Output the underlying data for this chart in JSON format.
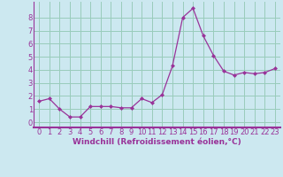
{
  "x": [
    0,
    1,
    2,
    3,
    4,
    5,
    6,
    7,
    8,
    9,
    10,
    11,
    12,
    13,
    14,
    15,
    16,
    17,
    18,
    19,
    20,
    21,
    22,
    23
  ],
  "y": [
    1.6,
    1.8,
    1.0,
    0.4,
    0.4,
    1.2,
    1.2,
    1.2,
    1.1,
    1.1,
    1.8,
    1.5,
    2.1,
    4.3,
    8.0,
    8.7,
    6.6,
    5.1,
    3.9,
    3.6,
    3.8,
    3.7,
    3.8,
    4.1
  ],
  "line_color": "#993399",
  "marker": "D",
  "markersize": 2.0,
  "linewidth": 0.9,
  "xlabel": "Windchill (Refroidissement éolien,°C)",
  "xlabel_fontsize": 6.5,
  "ylabel_ticks": [
    0,
    1,
    2,
    3,
    4,
    5,
    6,
    7,
    8
  ],
  "xtick_labels": [
    "0",
    "1",
    "2",
    "3",
    "4",
    "5",
    "6",
    "7",
    "8",
    "9",
    "10",
    "11",
    "12",
    "13",
    "14",
    "15",
    "16",
    "17",
    "18",
    "19",
    "20",
    "21",
    "22",
    "23"
  ],
  "xlim": [
    -0.5,
    23.5
  ],
  "ylim": [
    -0.4,
    9.2
  ],
  "bg_color": "#cce8f0",
  "grid_color": "#99ccbb",
  "tick_color": "#993399",
  "tick_fontsize": 6.0,
  "label_color": "#993399",
  "spine_color": "#993399"
}
